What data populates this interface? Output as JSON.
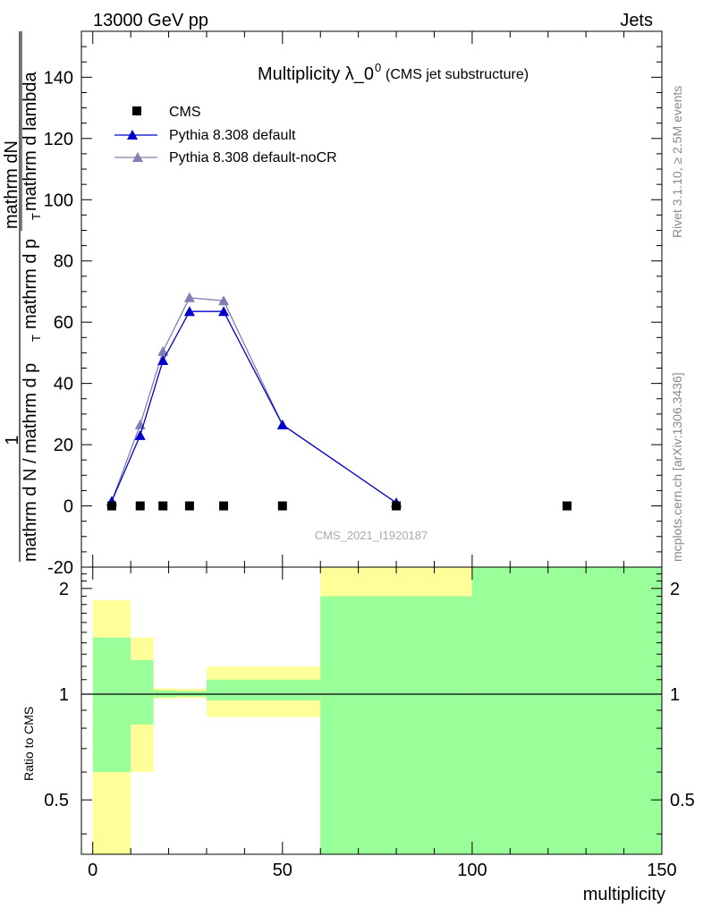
{
  "header": {
    "left": "13000 GeV pp",
    "right": "Jets"
  },
  "side_labels": {
    "rivet": "Rivet 3.1.10, ≥ 2.5M events",
    "mcplots": "mcplots.cern.ch [arXiv:1306.3436]"
  },
  "chart_data": [
    {
      "type": "line",
      "title": "Multiplicity λ_0",
      "title_sup": "0",
      "subtitle": "(CMS jet substructure)",
      "watermark": "CMS_2021_I1920187",
      "ylabel_top": "1",
      "ylabel_num": "mathrm dN",
      "ylabel_mid": "mathrm d p",
      "ylabel_mid_sub": "T",
      "ylabel_tail": "mathrm d lambda",
      "ylabel_den": "mathrm d N / mathrm d p",
      "ylabel_den_sub": "T",
      "ylabel_den_tail": "mathrm d p",
      "ylim": [
        -20,
        155
      ],
      "xlim": [
        -3,
        150
      ],
      "yticks": [
        "-20",
        "0",
        "20",
        "40",
        "60",
        "80",
        "100",
        "120",
        "140"
      ],
      "ytick_values": [
        -20,
        0,
        20,
        40,
        60,
        80,
        100,
        120,
        140
      ],
      "legend_position": "top-left",
      "series": [
        {
          "name": "CMS",
          "marker": "square",
          "color": "#000000",
          "x": [
            5,
            12.5,
            18.5,
            25.5,
            34.5,
            50,
            80,
            125
          ],
          "y": [
            0,
            0,
            0,
            0,
            0,
            0,
            0,
            0
          ]
        },
        {
          "name": "Pythia 8.308 default",
          "marker": "triangle",
          "color": "#0000cc",
          "x": [
            5,
            12.5,
            18.5,
            25.5,
            34.5,
            50,
            80
          ],
          "y": [
            1.5,
            23,
            47.5,
            63.5,
            63.5,
            26.5,
            1
          ]
        },
        {
          "name": "Pythia 8.308 default-noCR",
          "marker": "triangle",
          "color": "#7f7fb2",
          "x": [
            5,
            12.5,
            18.5,
            25.5,
            34.5,
            50,
            80
          ],
          "y": [
            1.5,
            26.5,
            50.5,
            68,
            67,
            26.5,
            1
          ]
        }
      ]
    },
    {
      "type": "area",
      "ylabel": "Ratio to CMS",
      "xlabel": "multiplicity",
      "xlim": [
        -3,
        150
      ],
      "ylim": [
        0.35,
        2.3
      ],
      "xticks": [
        "0",
        "50",
        "100",
        "150"
      ],
      "xtick_values": [
        0,
        50,
        100,
        150
      ],
      "yticks": [
        "0.5",
        "1",
        "2"
      ],
      "ytick_values": [
        0.5,
        1,
        2
      ],
      "reference_line": 1,
      "colors": {
        "outer_band": "#ffff99",
        "inner_band": "#99ff99",
        "line": "#000000"
      },
      "bins": [
        {
          "x0": 0,
          "x1": 10,
          "outer": [
            0.3,
            1.85
          ],
          "inner": [
            0.6,
            1.45
          ]
        },
        {
          "x0": 10,
          "x1": 16,
          "outer": [
            0.6,
            1.45
          ],
          "inner": [
            0.82,
            1.25
          ]
        },
        {
          "x0": 16,
          "x1": 22,
          "outer": [
            0.97,
            1.04
          ],
          "inner": [
            0.98,
            1.025
          ]
        },
        {
          "x0": 22,
          "x1": 30,
          "outer": [
            0.975,
            1.035
          ],
          "inner": [
            0.985,
            1.02
          ]
        },
        {
          "x0": 30,
          "x1": 60,
          "outer": [
            0.86,
            1.2
          ],
          "inner": [
            0.96,
            1.1
          ]
        },
        {
          "x0": 60,
          "x1": 100,
          "outer": [
            0.3,
            2.6
          ],
          "inner": [
            0.3,
            1.9
          ]
        },
        {
          "x0": 100,
          "x1": 150,
          "outer": [
            0.3,
            2.6
          ],
          "inner": [
            0.3,
            2.6
          ]
        }
      ]
    }
  ]
}
